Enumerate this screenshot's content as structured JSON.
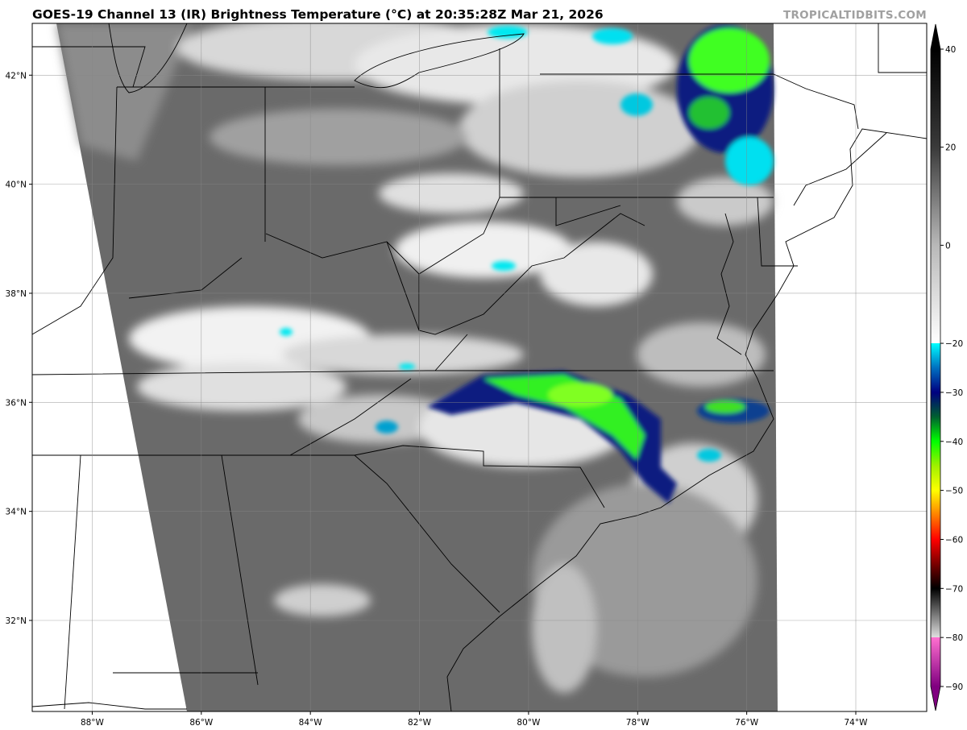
{
  "title": "GOES-19 Channel 13 (IR) Brightness Temperature (°C) at 20:35:28Z Mar 21, 2026",
  "watermark": "TROPICALTIDBITS.COM",
  "map": {
    "extent": {
      "west": -89.1,
      "east": -72.7,
      "south": 30.33,
      "north": 42.95
    },
    "gridlines": true,
    "lat_ticks": [
      {
        "value": 42,
        "label": "42°N"
      },
      {
        "value": 40,
        "label": "40°N"
      },
      {
        "value": 38,
        "label": "38°N"
      },
      {
        "value": 36,
        "label": "36°N"
      },
      {
        "value": 34,
        "label": "34°N"
      },
      {
        "value": 32,
        "label": "32°N"
      }
    ],
    "lon_ticks": [
      {
        "value": -88,
        "label": "88°W"
      },
      {
        "value": -86,
        "label": "86°W"
      },
      {
        "value": -84,
        "label": "84°W"
      },
      {
        "value": -82,
        "label": "82°W"
      },
      {
        "value": -80,
        "label": "80°W"
      },
      {
        "value": -78,
        "label": "78°W"
      },
      {
        "value": -76,
        "label": "76°W"
      },
      {
        "value": -74,
        "label": "74°W"
      }
    ]
  },
  "colorbar": {
    "range": [
      -90,
      40
    ],
    "ticks": [
      40,
      20,
      0,
      -20,
      -30,
      -40,
      -50,
      -60,
      -70,
      -80,
      -90
    ],
    "stops": [
      {
        "value": 40,
        "color": "#000000"
      },
      {
        "value": 20,
        "color": "#3a3a3a"
      },
      {
        "value": 0,
        "color": "#b8b8b8"
      },
      {
        "value": -20,
        "color": "#ffffff"
      },
      {
        "value": -20,
        "color": "#00ffff"
      },
      {
        "value": -25,
        "color": "#0070c0"
      },
      {
        "value": -30,
        "color": "#000080"
      },
      {
        "value": -35,
        "color": "#006030"
      },
      {
        "value": -40,
        "color": "#00ff00"
      },
      {
        "value": -45,
        "color": "#a0f000"
      },
      {
        "value": -50,
        "color": "#ffff00"
      },
      {
        "value": -55,
        "color": "#ff8000"
      },
      {
        "value": -60,
        "color": "#ff0000"
      },
      {
        "value": -66,
        "color": "#600000"
      },
      {
        "value": -70,
        "color": "#000000"
      },
      {
        "value": -80,
        "color": "#e0e0e0"
      },
      {
        "value": -80,
        "color": "#ff70d0"
      },
      {
        "value": -90,
        "color": "#800080"
      }
    ]
  }
}
